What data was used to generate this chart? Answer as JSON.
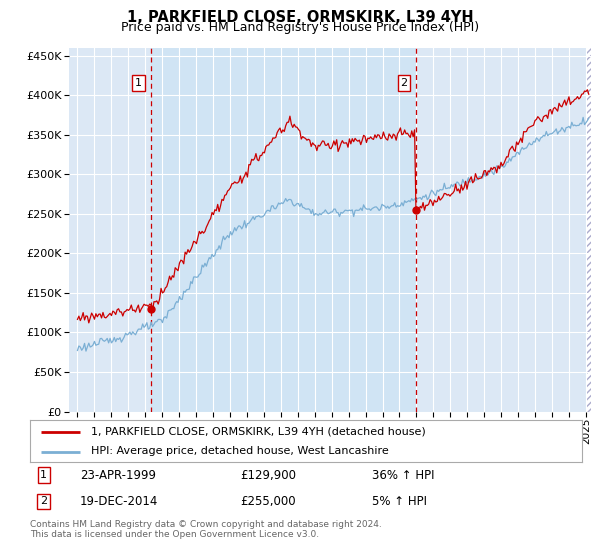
{
  "title": "1, PARKFIELD CLOSE, ORMSKIRK, L39 4YH",
  "subtitle": "Price paid vs. HM Land Registry's House Price Index (HPI)",
  "legend_line1": "1, PARKFIELD CLOSE, ORMSKIRK, L39 4YH (detached house)",
  "legend_line2": "HPI: Average price, detached house, West Lancashire",
  "annotation1": {
    "label": "1",
    "date": "23-APR-1999",
    "price": "£129,900",
    "hpi": "36% ↑ HPI",
    "x_year": 1999.31
  },
  "annotation2": {
    "label": "2",
    "date": "19-DEC-2014",
    "price": "£255,000",
    "hpi": "5% ↑ HPI",
    "x_year": 2014.97
  },
  "footer": "Contains HM Land Registry data © Crown copyright and database right 2024.\nThis data is licensed under the Open Government Licence v3.0.",
  "red_color": "#cc0000",
  "blue_color": "#7bafd4",
  "background_color": "#dce8f5",
  "shaded_bg": "#d0e4f4",
  "right_hatch_color": "#dce8f5",
  "ylim": [
    0,
    460000
  ],
  "xlim_start": 1994.5,
  "xlim_end": 2025.3,
  "sale1_y": 129900,
  "sale2_y": 255000
}
